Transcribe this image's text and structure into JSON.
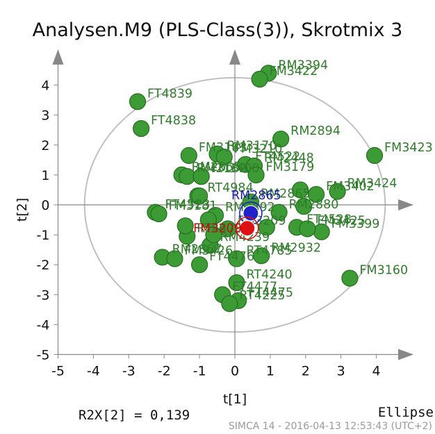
{
  "chart_data": {
    "type": "scatter",
    "title": "Analysen.M9 (PLS-Class(3)), Skrotmix 3",
    "xlabel": "t[1]",
    "ylabel": "t[2]",
    "xlim": [
      -5,
      4.5
    ],
    "ylim": [
      -5,
      4.5
    ],
    "xticks": [
      -5,
      -4,
      -3,
      -2,
      -1,
      0,
      1,
      2,
      3,
      4
    ],
    "yticks": [
      -5,
      -4,
      -3,
      -2,
      -1,
      0,
      1,
      2,
      3,
      4
    ],
    "ellipse": {
      "rx": 4.25,
      "ry": 4.25
    },
    "colors": {
      "observation_fill": "#3d9b35",
      "observation_stroke": "#246e1f",
      "observation_label": "#2f7d2a",
      "blue_fill": "#2222cc",
      "blue_label": "#1a1aaa",
      "red_fill": "#dd1111",
      "red_label": "#c01010",
      "ellipse": "#c0c0c0",
      "axis": "#888888"
    },
    "points": [
      {
        "label": "RM3394",
        "x": 0.95,
        "y": 4.4
      },
      {
        "label": "FM3422",
        "x": 0.7,
        "y": 4.2
      },
      {
        "label": "FT4839",
        "x": -2.75,
        "y": 3.45
      },
      {
        "label": "RM2894",
        "x": 1.3,
        "y": 2.2
      },
      {
        "label": "FT4838",
        "x": -2.65,
        "y": 2.55
      },
      {
        "label": "FM3423",
        "x": 3.95,
        "y": 1.65
      },
      {
        "label": "RM3170",
        "x": -0.5,
        "y": 1.7
      },
      {
        "label": "FM3210",
        "x": -0.3,
        "y": 1.6
      },
      {
        "label": "FT4522",
        "x": 0.3,
        "y": 1.35
      },
      {
        "label": "RM2448",
        "x": 0.55,
        "y": 1.3
      },
      {
        "label": "FM3183",
        "x": -1.3,
        "y": 1.65
      },
      {
        "label": "RM2855",
        "x": -1.5,
        "y": 1.0
      },
      {
        "label": "RM2182",
        "x": -1.35,
        "y": 0.95
      },
      {
        "label": "FM3400",
        "x": -0.95,
        "y": 0.95
      },
      {
        "label": "FM3179",
        "x": 0.6,
        "y": 1.0
      },
      {
        "label": "RT4984",
        "x": -1.05,
        "y": 0.3
      },
      {
        "label": "RM2865",
        "x": 0.45,
        "y": 0.1
      },
      {
        "label": "FT4523",
        "x": -2.25,
        "y": -0.25
      },
      {
        "label": "FM3181",
        "x": -2.15,
        "y": -0.3
      },
      {
        "label": "RM3892",
        "x": -0.55,
        "y": -0.35
      },
      {
        "label": "FM3209",
        "x": -0.2,
        "y": -0.8
      },
      {
        "label": "RM2880",
        "x": 1.25,
        "y": -0.25
      },
      {
        "label": "FT4528",
        "x": 1.75,
        "y": -0.75
      },
      {
        "label": "RT4478",
        "x": -1.35,
        "y": -1.05
      },
      {
        "label": "RM4239",
        "x": -0.7,
        "y": -1.35
      },
      {
        "label": "FM3399",
        "x": 2.45,
        "y": -0.9
      },
      {
        "label": "FM3425",
        "x": 2.05,
        "y": -0.8
      },
      {
        "label": "RM3424",
        "x": 2.9,
        "y": 0.45
      },
      {
        "label": "FM3402",
        "x": 2.3,
        "y": 0.35
      },
      {
        "label": "RM2867",
        "x": -2.05,
        "y": -1.75
      },
      {
        "label": "FM3426",
        "x": -1.7,
        "y": -1.8
      },
      {
        "label": "RT4785",
        "x": 0.05,
        "y": -1.8
      },
      {
        "label": "RM2932",
        "x": 0.75,
        "y": -1.7
      },
      {
        "label": "FT4476",
        "x": -1.0,
        "y": -2.0
      },
      {
        "label": "FM3160",
        "x": 3.25,
        "y": -2.45
      },
      {
        "label": "RT4240",
        "x": 0.05,
        "y": -2.6
      },
      {
        "label": "FT4477",
        "x": -0.35,
        "y": -3.0
      },
      {
        "label": "FT4475",
        "x": 0.1,
        "y": -3.2
      },
      {
        "label": "RT4225",
        "x": -0.15,
        "y": -3.3
      },
      {
        "label": "",
        "x": 1.85,
        "y": 0.5
      },
      {
        "label": "",
        "x": 1.95,
        "y": -0.05
      },
      {
        "label": "",
        "x": -1.4,
        "y": -0.7
      },
      {
        "label": "",
        "x": -0.75,
        "y": -0.5
      },
      {
        "label": "",
        "x": -1.0,
        "y": 0.3
      },
      {
        "label": "",
        "x": -0.6,
        "y": -1.0
      },
      {
        "label": "",
        "x": 0.9,
        "y": -0.75
      },
      {
        "label": "",
        "x": -0.95,
        "y": 0.95
      }
    ],
    "highlighted": [
      {
        "label": "RM2865",
        "x": 0.45,
        "y": -0.28,
        "color": "blue"
      },
      {
        "label": "FM3209",
        "x": 0.35,
        "y": -0.78,
        "color": "red"
      }
    ]
  },
  "footer": {
    "r2x_label": "R2X[2] = 0,139",
    "ellipse_label": "Ellipse",
    "software_stamp": "SIMCA 14 - 2016-04-13 12:53:43 (UTC+2)"
  }
}
